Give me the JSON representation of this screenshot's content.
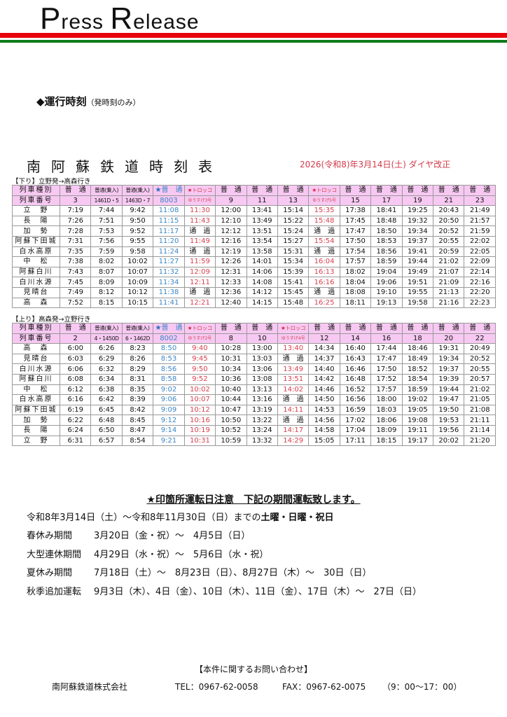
{
  "header": {
    "brand_p": "P",
    "brand_ress": "ress ",
    "brand_r": "R",
    "brand_elease": "elease",
    "line_colors": [
      "#e8000a",
      "#0d7a1a"
    ]
  },
  "section": {
    "title": "◆運行時刻",
    "subtitle": "（発時刻のみ）"
  },
  "timetable": {
    "title": "南阿蘇鉄道時刻表",
    "revision": "2026(令和8)年3月14日(土) ダイヤ改正"
  },
  "tables": [
    {
      "direction": "【下り】立野発→高森行き",
      "type_label": "列車種別",
      "number_label": "列車番号",
      "columns": [
        {
          "type": "普　通",
          "number": "3",
          "style": ""
        },
        {
          "type": "普通(乗入)",
          "number": "1461D・5",
          "style": ""
        },
        {
          "type": "普通(乗入)",
          "number": "1463D・7",
          "style": ""
        },
        {
          "type": "★普　通",
          "number": "8003",
          "style": "blue"
        },
        {
          "type": "★トロッコ",
          "number": "ゆうすげ3号",
          "style": "red"
        },
        {
          "type": "普　通",
          "number": "9",
          "style": ""
        },
        {
          "type": "普　通",
          "number": "11",
          "style": ""
        },
        {
          "type": "普　通",
          "number": "13",
          "style": ""
        },
        {
          "type": "★トロッコ",
          "number": "ゆうすげ5号",
          "style": "red"
        },
        {
          "type": "普　通",
          "number": "15",
          "style": ""
        },
        {
          "type": "普　通",
          "number": "17",
          "style": ""
        },
        {
          "type": "普　通",
          "number": "19",
          "style": ""
        },
        {
          "type": "普　通",
          "number": "21",
          "style": ""
        },
        {
          "type": "普　通",
          "number": "23",
          "style": ""
        }
      ],
      "rows": [
        {
          "station": "立　野",
          "times": [
            "7:19",
            "7:44",
            "9:42",
            "11:08",
            "11:30",
            "12:00",
            "13:41",
            "15:14",
            "15:35",
            "17:38",
            "18:41",
            "19:25",
            "20:43",
            "21:49"
          ]
        },
        {
          "station": "長　陽",
          "times": [
            "7:26",
            "7:51",
            "9:50",
            "11:15",
            "11:43",
            "12:10",
            "13:49",
            "15:22",
            "15:48",
            "17:45",
            "18:48",
            "19:32",
            "20:50",
            "21:57"
          ]
        },
        {
          "station": "加　勢",
          "times": [
            "7:28",
            "7:53",
            "9:52",
            "11:17",
            "通　過",
            "12:12",
            "13:51",
            "15:24",
            "通　過",
            "17:47",
            "18:50",
            "19:34",
            "20:52",
            "21:59"
          ]
        },
        {
          "station": "阿蘇下田城",
          "times": [
            "7:31",
            "7:56",
            "9:55",
            "11:20",
            "11:49",
            "12:16",
            "13:54",
            "15:27",
            "15:54",
            "17:50",
            "18:53",
            "19:37",
            "20:55",
            "22:02"
          ]
        },
        {
          "station": "白水高原",
          "times": [
            "7:35",
            "7:59",
            "9:58",
            "11:24",
            "通　過",
            "12:19",
            "13:58",
            "15:31",
            "通　過",
            "17:54",
            "18:56",
            "19:41",
            "20:59",
            "22:05"
          ]
        },
        {
          "station": "中　松",
          "times": [
            "7:38",
            "8:02",
            "10:02",
            "11:27",
            "11:59",
            "12:26",
            "14:01",
            "15:34",
            "16:04",
            "17:57",
            "18:59",
            "19:44",
            "21:02",
            "22:09"
          ]
        },
        {
          "station": "阿蘇白川",
          "times": [
            "7:43",
            "8:07",
            "10:07",
            "11:32",
            "12:09",
            "12:31",
            "14:06",
            "15:39",
            "16:13",
            "18:02",
            "19:04",
            "19:49",
            "21:07",
            "22:14"
          ]
        },
        {
          "station": "白川水源",
          "times": [
            "7:45",
            "8:09",
            "10:09",
            "11:34",
            "12:11",
            "12:33",
            "14:08",
            "15:41",
            "16:16",
            "18:04",
            "19:06",
            "19:51",
            "21:09",
            "22:16"
          ]
        },
        {
          "station": "見晴台",
          "times": [
            "7:49",
            "8:12",
            "10:12",
            "11:38",
            "通　過",
            "12:36",
            "14:12",
            "15:45",
            "通　過",
            "18:08",
            "19:10",
            "19:55",
            "21:13",
            "22:20"
          ]
        },
        {
          "station": "高　森",
          "times": [
            "7:52",
            "8:15",
            "10:15",
            "11:41",
            "12:21",
            "12:40",
            "14:15",
            "15:48",
            "16:25",
            "18:11",
            "19:13",
            "19:58",
            "21:16",
            "22:23"
          ]
        }
      ]
    },
    {
      "direction": "【上り】高森発→立野行き",
      "type_label": "列車種別",
      "number_label": "列車番号",
      "columns": [
        {
          "type": "普　通",
          "number": "2",
          "style": ""
        },
        {
          "type": "普通(乗入)",
          "number": "4・1450D",
          "style": ""
        },
        {
          "type": "普通(乗入)",
          "number": "6・1462D",
          "style": ""
        },
        {
          "type": "★普　通",
          "number": "8002",
          "style": "blue"
        },
        {
          "type": "★トロッコ",
          "number": "ゆうすげ2号",
          "style": "red"
        },
        {
          "type": "普　通",
          "number": "8",
          "style": ""
        },
        {
          "type": "普　通",
          "number": "10",
          "style": ""
        },
        {
          "type": "★トロッコ",
          "number": "ゆうすげ4号",
          "style": "red"
        },
        {
          "type": "普　通",
          "number": "12",
          "style": ""
        },
        {
          "type": "普　通",
          "number": "14",
          "style": ""
        },
        {
          "type": "普　通",
          "number": "16",
          "style": ""
        },
        {
          "type": "普　通",
          "number": "18",
          "style": ""
        },
        {
          "type": "普　通",
          "number": "20",
          "style": ""
        },
        {
          "type": "普　通",
          "number": "22",
          "style": ""
        }
      ],
      "rows": [
        {
          "station": "高　森",
          "times": [
            "6:00",
            "6:26",
            "8:23",
            "8:50",
            "9:40",
            "10:28",
            "13:00",
            "13:40",
            "14:34",
            "16:40",
            "17:44",
            "18:46",
            "19:31",
            "20:49"
          ]
        },
        {
          "station": "見晴台",
          "times": [
            "6:03",
            "6:29",
            "8:26",
            "8:53",
            "9:45",
            "10:31",
            "13:03",
            "通　過",
            "14:37",
            "16:43",
            "17:47",
            "18:49",
            "19:34",
            "20:52"
          ]
        },
        {
          "station": "白川水源",
          "times": [
            "6:06",
            "6:32",
            "8:29",
            "8:56",
            "9:50",
            "10:34",
            "13:06",
            "13:49",
            "14:40",
            "16:46",
            "17:50",
            "18:52",
            "19:37",
            "20:55"
          ]
        },
        {
          "station": "阿蘇白川",
          "times": [
            "6:08",
            "6:34",
            "8:31",
            "8:58",
            "9:52",
            "10:36",
            "13:08",
            "13:51",
            "14:42",
            "16:48",
            "17:52",
            "18:54",
            "19:39",
            "20:57"
          ]
        },
        {
          "station": "中　松",
          "times": [
            "6:12",
            "6:38",
            "8:35",
            "9:02",
            "10:02",
            "10:40",
            "13:13",
            "14:02",
            "14:46",
            "16:52",
            "17:57",
            "18:59",
            "19:44",
            "21:02"
          ]
        },
        {
          "station": "白水高原",
          "times": [
            "6:16",
            "6:42",
            "8:39",
            "9:06",
            "10:07",
            "10:44",
            "13:16",
            "通　過",
            "14:50",
            "16:56",
            "18:00",
            "19:02",
            "19:47",
            "21:05"
          ]
        },
        {
          "station": "阿蘇下田城",
          "times": [
            "6:19",
            "6:45",
            "8:42",
            "9:09",
            "10:12",
            "10:47",
            "13:19",
            "14:11",
            "14:53",
            "16:59",
            "18:03",
            "19:05",
            "19:50",
            "21:08"
          ]
        },
        {
          "station": "加　勢",
          "times": [
            "6:22",
            "6:48",
            "8:45",
            "9:12",
            "10:16",
            "10:50",
            "13:22",
            "通　過",
            "14:56",
            "17:02",
            "18:06",
            "19:08",
            "19:53",
            "21:11"
          ]
        },
        {
          "station": "長　陽",
          "times": [
            "6:24",
            "6:50",
            "8:47",
            "9:14",
            "10:19",
            "10:52",
            "13:24",
            "14:17",
            "14:58",
            "17:04",
            "18:09",
            "19:11",
            "19:56",
            "21:14"
          ]
        },
        {
          "station": "立　野",
          "times": [
            "6:31",
            "6:57",
            "8:54",
            "9:21",
            "10:31",
            "10:59",
            "13:32",
            "14:29",
            "15:05",
            "17:11",
            "18:15",
            "19:17",
            "20:02",
            "21:20"
          ]
        }
      ]
    }
  ],
  "notes": {
    "heading": "★印箇所運転日注意　下記の期間運転致します。",
    "intro": "令和8年3月14日（土）～令和8年11月30日（日）までの",
    "intro_bold": "土曜・日曜・祝日",
    "periods": [
      {
        "label": "春休み期間",
        "dates": "3月20日（金・祝）～　4月5日（日）"
      },
      {
        "label": "大型連休期間",
        "dates": "4月29日（水・祝）～　5月6日（水・祝）"
      },
      {
        "label": "夏休み期間",
        "dates": "7月18日（土）～　8月23日（日）、8月27日（木）～　30日（日）"
      },
      {
        "label": "秋季追加運転",
        "dates": "9月3日（木）、4日（金）、10日（木）、11日（金）、17日（木）～　27日（日）"
      }
    ]
  },
  "contact": {
    "heading": "【本件に関するお問い合わせ】",
    "company": "南阿蘇鉄道株式会社",
    "tel": "TEL：0967-62-0058",
    "fax": "FAX：0967-62-0075",
    "hours": "（9：00～17：00）"
  }
}
